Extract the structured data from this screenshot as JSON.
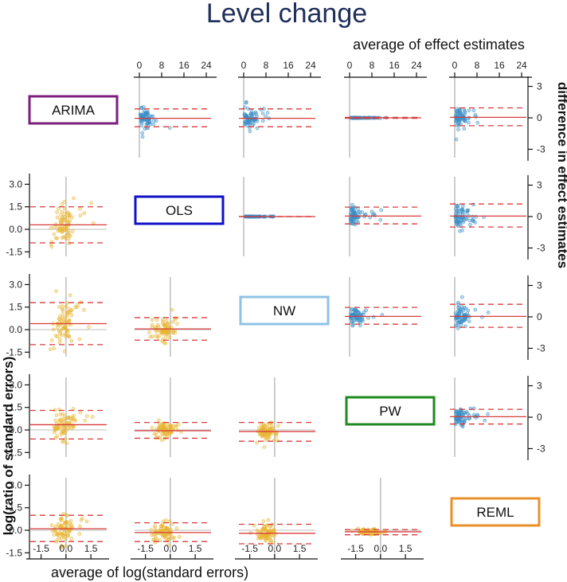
{
  "chart_data": {
    "type": "scatter",
    "title": "Level change",
    "top_axis_title": "average of effect estimates",
    "right_axis_title": "difference in effect estimates",
    "left_axis_title": "log(ratio of standard errors)",
    "bottom_axis_title": "average of log(standard errors)",
    "methods": [
      "ARIMA",
      "OLS",
      "NW",
      "PW",
      "REML"
    ],
    "method_colors": {
      "ARIMA": "#7b1f7e",
      "OLS": "#1010c8",
      "NW": "#8ec3e6",
      "PW": "#1f8a1f",
      "REML": "#e8902a"
    },
    "point_colors": {
      "upper": "#3a8fc7",
      "lower": "#e8b430"
    },
    "line_colors": {
      "bias": "#d93b3b",
      "zero": "#bdbdbd"
    },
    "upper": {
      "x_ticks": [
        0,
        8,
        16,
        24
      ],
      "x_tick_labels": [
        "0",
        "8",
        "16",
        "24"
      ],
      "x_range": [
        -2,
        26
      ],
      "y_ticks": [
        3,
        0,
        -3
      ],
      "y_tick_labels": [
        "3",
        "0",
        "-3"
      ],
      "y_range": [
        -3.8,
        3.8
      ],
      "panels": [
        {
          "row": 0,
          "col": 1,
          "mean": -0.05,
          "upper_loa": 0.85,
          "lower_loa": -0.85
        },
        {
          "row": 0,
          "col": 2,
          "mean": -0.05,
          "upper_loa": 0.85,
          "lower_loa": -0.85
        },
        {
          "row": 0,
          "col": 3,
          "mean": 0.0,
          "upper_loa": 0.05,
          "lower_loa": -0.05
        },
        {
          "row": 0,
          "col": 4,
          "mean": 0.05,
          "upper_loa": 0.95,
          "lower_loa": -0.75
        },
        {
          "row": 1,
          "col": 2,
          "mean": 0.0,
          "upper_loa": 0.0,
          "lower_loa": 0.0
        },
        {
          "row": 1,
          "col": 3,
          "mean": 0.05,
          "upper_loa": 0.9,
          "lower_loa": -0.7
        },
        {
          "row": 1,
          "col": 4,
          "mean": 0.05,
          "upper_loa": 1.2,
          "lower_loa": -1.0
        },
        {
          "row": 2,
          "col": 3,
          "mean": 0.05,
          "upper_loa": 0.9,
          "lower_loa": -0.7
        },
        {
          "row": 2,
          "col": 4,
          "mean": 0.05,
          "upper_loa": 1.2,
          "lower_loa": -1.0
        },
        {
          "row": 3,
          "col": 4,
          "mean": 0.05,
          "upper_loa": 0.75,
          "lower_loa": -0.65
        }
      ]
    },
    "lower": {
      "x_ticks": [
        -1.5,
        0.0,
        1.5
      ],
      "x_tick_labels": [
        "-1.5",
        "0.0",
        "1.5"
      ],
      "x_range": [
        -2.2,
        2.5
      ],
      "y_ticks": [
        3.0,
        1.5,
        0.0,
        -1.5
      ],
      "y_tick_labels": [
        "3.0",
        "1.5",
        "0.0",
        "-1.5"
      ],
      "y_range": [
        -1.8,
        3.5
      ],
      "panels": [
        {
          "row": 1,
          "col": 0,
          "mean": 0.3,
          "upper_loa": 1.5,
          "lower_loa": -0.9
        },
        {
          "row": 2,
          "col": 0,
          "mean": 0.4,
          "upper_loa": 1.8,
          "lower_loa": -1.0
        },
        {
          "row": 2,
          "col": 1,
          "mean": 0.05,
          "upper_loa": 0.8,
          "lower_loa": -0.7
        },
        {
          "row": 3,
          "col": 0,
          "mean": 0.35,
          "upper_loa": 1.3,
          "lower_loa": -0.6
        },
        {
          "row": 3,
          "col": 1,
          "mean": -0.05,
          "upper_loa": 0.5,
          "lower_loa": -0.55
        },
        {
          "row": 3,
          "col": 2,
          "mean": -0.1,
          "upper_loa": 0.5,
          "lower_loa": -0.75
        },
        {
          "row": 4,
          "col": 0,
          "mean": 0.1,
          "upper_loa": 1.0,
          "lower_loa": -0.75
        },
        {
          "row": 4,
          "col": 1,
          "mean": -0.15,
          "upper_loa": 0.5,
          "lower_loa": -0.75
        },
        {
          "row": 4,
          "col": 2,
          "mean": -0.2,
          "upper_loa": 0.4,
          "lower_loa": -0.9
        },
        {
          "row": 4,
          "col": 3,
          "mean": -0.1,
          "upper_loa": 0.05,
          "lower_loa": -0.3
        }
      ]
    }
  }
}
